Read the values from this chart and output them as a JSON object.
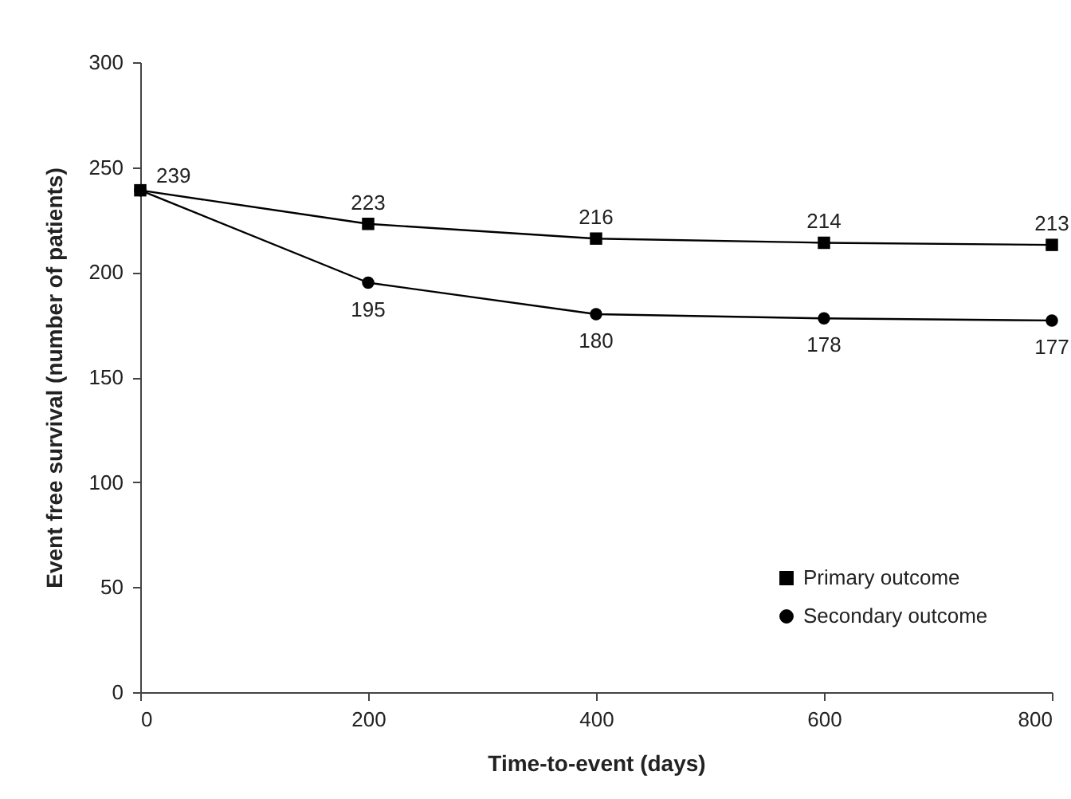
{
  "chart_data": {
    "type": "line",
    "xlabel": "Time-to-event (days)",
    "ylabel": "Event free survival (number of patients)",
    "x": [
      0,
      200,
      400,
      600,
      800
    ],
    "series": [
      {
        "name": "Primary outcome",
        "color": "#000000",
        "marker": "square",
        "values": [
          239,
          223,
          216,
          214,
          213
        ],
        "value_labels": [
          "239",
          "223",
          "216",
          "214",
          "213"
        ]
      },
      {
        "name": "Secondary outcome",
        "color": "#000000",
        "marker": "circle",
        "values": [
          239,
          195,
          180,
          178,
          177
        ],
        "value_labels": [
          null,
          "195",
          "180",
          "178",
          "177"
        ]
      }
    ],
    "xlim": [
      0,
      800
    ],
    "xticks": [
      0,
      200,
      400,
      600,
      800
    ],
    "ylim": [
      0,
      300
    ],
    "yticks": [
      0,
      50,
      100,
      150,
      200,
      250,
      300
    ],
    "grid": false,
    "legend": "bottom right",
    "line_style": "solid"
  }
}
